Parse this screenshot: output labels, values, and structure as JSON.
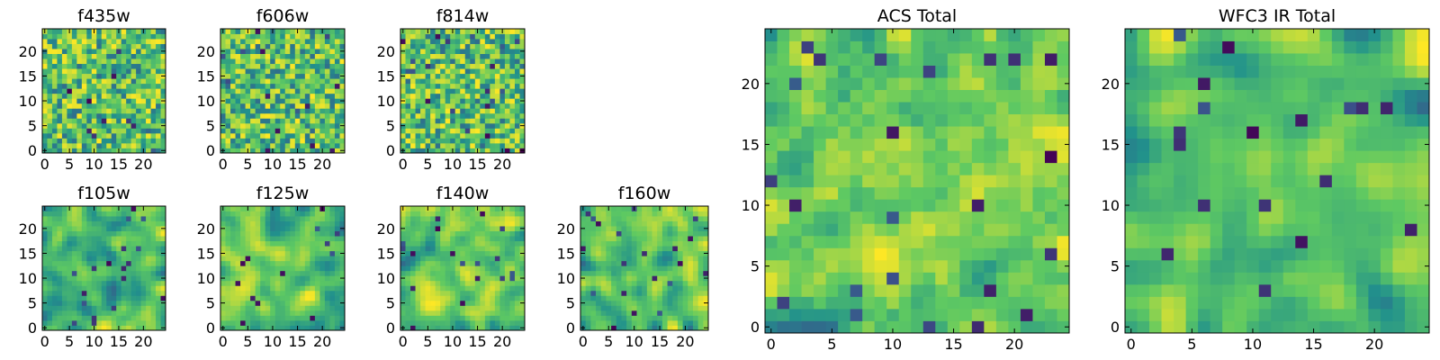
{
  "figure": {
    "description_colormap": "viridis",
    "colormap": [
      "#440154",
      "#3b528b",
      "#21918c",
      "#5ec962",
      "#fde725"
    ]
  },
  "chart_data": [
    {
      "type": "heatmap",
      "title": "f435w",
      "grid_size": 25,
      "xticks": [
        0,
        5,
        10,
        15,
        20
      ],
      "yticks": [
        0,
        5,
        10,
        15,
        20
      ],
      "xlim": [
        0,
        24
      ],
      "ylim": [
        0,
        24
      ],
      "smoothness": "noisy",
      "seed": 11
    },
    {
      "type": "heatmap",
      "title": "f606w",
      "grid_size": 25,
      "xticks": [
        0,
        5,
        10,
        15,
        20
      ],
      "yticks": [
        0,
        5,
        10,
        15,
        20
      ],
      "xlim": [
        0,
        24
      ],
      "ylim": [
        0,
        24
      ],
      "smoothness": "noisy",
      "seed": 23
    },
    {
      "type": "heatmap",
      "title": "f814w",
      "grid_size": 25,
      "xticks": [
        0,
        5,
        10,
        15,
        20
      ],
      "yticks": [
        0,
        5,
        10,
        15,
        20
      ],
      "xlim": [
        0,
        24
      ],
      "ylim": [
        0,
        24
      ],
      "smoothness": "noisy",
      "seed": 37
    },
    {
      "type": "heatmap",
      "title": "f105w",
      "grid_size": 25,
      "xticks": [
        0,
        5,
        10,
        15,
        20
      ],
      "yticks": [
        0,
        5,
        10,
        15,
        20
      ],
      "xlim": [
        0,
        24
      ],
      "ylim": [
        0,
        24
      ],
      "smoothness": "smooth",
      "seed": 41
    },
    {
      "type": "heatmap",
      "title": "f125w",
      "grid_size": 25,
      "xticks": [
        0,
        5,
        10,
        15,
        20
      ],
      "yticks": [
        0,
        5,
        10,
        15,
        20
      ],
      "xlim": [
        0,
        24
      ],
      "ylim": [
        0,
        24
      ],
      "smoothness": "smooth",
      "seed": 53
    },
    {
      "type": "heatmap",
      "title": "f140w",
      "grid_size": 25,
      "xticks": [
        0,
        5,
        10,
        15,
        20
      ],
      "yticks": [
        0,
        5,
        10,
        15,
        20
      ],
      "xlim": [
        0,
        24
      ],
      "ylim": [
        0,
        24
      ],
      "smoothness": "smooth",
      "seed": 67
    },
    {
      "type": "heatmap",
      "title": "f160w",
      "grid_size": 25,
      "xticks": [
        0,
        5,
        10,
        15,
        20
      ],
      "yticks": [
        0,
        5,
        10,
        15,
        20
      ],
      "xlim": [
        0,
        24
      ],
      "ylim": [
        0,
        24
      ],
      "smoothness": "smooth",
      "seed": 79
    },
    {
      "type": "heatmap",
      "title": "ACS Total",
      "grid_size": 25,
      "xticks": [
        0,
        5,
        10,
        15,
        20
      ],
      "yticks": [
        0,
        5,
        10,
        15,
        20
      ],
      "xlim": [
        0,
        24
      ],
      "ylim": [
        0,
        24
      ],
      "smoothness": "medium",
      "seed": 97
    },
    {
      "type": "heatmap",
      "title": "WFC3 IR Total",
      "grid_size": 25,
      "xticks": [
        0,
        5,
        10,
        15,
        20
      ],
      "yticks": [
        0,
        5,
        10,
        15,
        20
      ],
      "xlim": [
        0,
        24
      ],
      "ylim": [
        0,
        24
      ],
      "smoothness": "smooth",
      "seed": 113
    }
  ]
}
